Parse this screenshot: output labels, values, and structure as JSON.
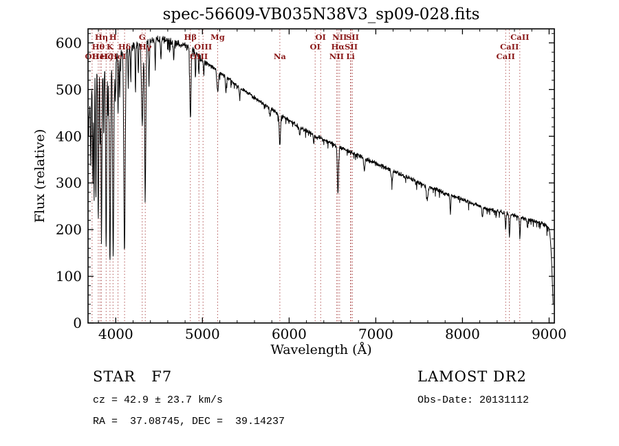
{
  "title": "spec-56609-VB035N38V3_sp09-028.fits",
  "chart_data": {
    "type": "line",
    "title": "spec-56609-VB035N38V3_sp09-028.fits",
    "xlabel": "Wavelength (Å)",
    "ylabel": "Flux (relative)",
    "xlim": [
      3680,
      9060
    ],
    "ylim": [
      0,
      630
    ],
    "x_ticks": [
      4000,
      5000,
      6000,
      7000,
      8000,
      9000
    ],
    "y_ticks": [
      0,
      100,
      200,
      300,
      400,
      500,
      600
    ],
    "x_minor_step": 200,
    "y_minor_step": 20,
    "grid": false,
    "legend": false,
    "line_color": "#000000",
    "marker_color": "#aa4444",
    "label_color": "#8b1a1a",
    "continuum": [
      [
        3688,
        420
      ],
      [
        3700,
        465
      ],
      [
        3715,
        500
      ],
      [
        3730,
        515
      ],
      [
        3750,
        527
      ],
      [
        3775,
        536
      ],
      [
        3800,
        542
      ],
      [
        3830,
        549
      ],
      [
        3860,
        554
      ],
      [
        3900,
        559
      ],
      [
        3950,
        564
      ],
      [
        4000,
        569
      ],
      [
        4060,
        578
      ],
      [
        4120,
        586
      ],
      [
        4180,
        592
      ],
      [
        4240,
        597
      ],
      [
        4300,
        600
      ],
      [
        4360,
        603
      ],
      [
        4420,
        606
      ],
      [
        4480,
        608
      ],
      [
        4540,
        607
      ],
      [
        4600,
        605
      ],
      [
        4660,
        602
      ],
      [
        4720,
        599
      ],
      [
        4780,
        596
      ],
      [
        4840,
        592
      ],
      [
        4900,
        585
      ],
      [
        4960,
        570
      ],
      [
        5020,
        560
      ],
      [
        5080,
        552
      ],
      [
        5140,
        545
      ],
      [
        5200,
        537
      ],
      [
        5260,
        528
      ],
      [
        5320,
        520
      ],
      [
        5380,
        512
      ],
      [
        5440,
        504
      ],
      [
        5500,
        496
      ],
      [
        5560,
        488
      ],
      [
        5620,
        480
      ],
      [
        5680,
        472
      ],
      [
        5740,
        465
      ],
      [
        5800,
        458
      ],
      [
        5860,
        450
      ],
      [
        5920,
        443
      ],
      [
        5980,
        436
      ],
      [
        6040,
        429
      ],
      [
        6100,
        422
      ],
      [
        6160,
        416
      ],
      [
        6220,
        410
      ],
      [
        6280,
        404
      ],
      [
        6340,
        398
      ],
      [
        6400,
        392
      ],
      [
        6460,
        387
      ],
      [
        6520,
        382
      ],
      [
        6580,
        377
      ],
      [
        6640,
        372
      ],
      [
        6700,
        367
      ],
      [
        6760,
        362
      ],
      [
        6820,
        357
      ],
      [
        6880,
        352
      ],
      [
        6940,
        347
      ],
      [
        7000,
        342
      ],
      [
        7060,
        337
      ],
      [
        7120,
        332
      ],
      [
        7180,
        327
      ],
      [
        7240,
        322
      ],
      [
        7300,
        317
      ],
      [
        7360,
        312
      ],
      [
        7420,
        307
      ],
      [
        7480,
        302
      ],
      [
        7540,
        297
      ],
      [
        7600,
        293
      ],
      [
        7660,
        288
      ],
      [
        7720,
        284
      ],
      [
        7780,
        279
      ],
      [
        7840,
        275
      ],
      [
        7900,
        271
      ],
      [
        7960,
        267
      ],
      [
        8020,
        263
      ],
      [
        8080,
        258
      ],
      [
        8140,
        254
      ],
      [
        8200,
        250
      ],
      [
        8260,
        246
      ],
      [
        8320,
        243
      ],
      [
        8380,
        240
      ],
      [
        8440,
        238
      ],
      [
        8500,
        236
      ],
      [
        8560,
        232
      ],
      [
        8620,
        229
      ],
      [
        8680,
        226
      ],
      [
        8740,
        223
      ],
      [
        8800,
        220
      ],
      [
        8860,
        217
      ],
      [
        8920,
        213
      ],
      [
        8960,
        210
      ],
      [
        9000,
        203
      ],
      [
        9012,
        185
      ],
      [
        9024,
        150
      ],
      [
        9034,
        105
      ],
      [
        9042,
        60
      ],
      [
        9048,
        28
      ]
    ],
    "absorption_lines": [
      [
        3712,
        150,
        4
      ],
      [
        3735,
        230,
        4
      ],
      [
        3750,
        270,
        4
      ],
      [
        3771,
        285,
        4
      ],
      [
        3798,
        330,
        5
      ],
      [
        3820,
        165,
        4
      ],
      [
        3835,
        380,
        5
      ],
      [
        3860,
        150,
        4
      ],
      [
        3889,
        400,
        6
      ],
      [
        3910,
        120,
        4
      ],
      [
        3933,
        430,
        7
      ],
      [
        3970,
        420,
        7
      ],
      [
        3995,
        100,
        4
      ],
      [
        4026,
        130,
        4
      ],
      [
        4045,
        90,
        4
      ],
      [
        4101,
        430,
        8
      ],
      [
        4144,
        80,
        4
      ],
      [
        4173,
        70,
        4
      ],
      [
        4227,
        105,
        4
      ],
      [
        4260,
        60,
        4
      ],
      [
        4305,
        170,
        9
      ],
      [
        4340,
        335,
        7
      ],
      [
        4383,
        95,
        4
      ],
      [
        4455,
        55,
        4
      ],
      [
        4520,
        45,
        4
      ],
      [
        4668,
        40,
        4
      ],
      [
        4861,
        152,
        7
      ],
      [
        4920,
        55,
        4
      ],
      [
        4958,
        35,
        4
      ],
      [
        5015,
        30,
        4
      ],
      [
        5175,
        45,
        9
      ],
      [
        5270,
        35,
        5
      ],
      [
        5430,
        25,
        5
      ],
      [
        5780,
        20,
        5
      ],
      [
        5893,
        68,
        7
      ],
      [
        6122,
        18,
        5
      ],
      [
        6283,
        18,
        5
      ],
      [
        6563,
        97,
        7
      ],
      [
        6867,
        26,
        7
      ],
      [
        7186,
        22,
        8
      ],
      [
        7594,
        28,
        10
      ],
      [
        7860,
        38,
        5
      ],
      [
        8230,
        20,
        6
      ],
      [
        8498,
        36,
        5
      ],
      [
        8542,
        46,
        5
      ],
      [
        8662,
        42,
        5
      ],
      [
        8750,
        20,
        5
      ]
    ],
    "noise": {
      "seed": 12345,
      "blue_amp": 20,
      "mid_amp": 8,
      "red_amp": 5.5
    },
    "spectral_markers": [
      {
        "wavelength": 3727,
        "label": "OII",
        "row": 3
      },
      {
        "wavelength": 3798,
        "label": "Hθ",
        "row": 2
      },
      {
        "wavelength": 3820,
        "label": "HeI",
        "row": 3
      },
      {
        "wavelength": 3835,
        "label": "Hη",
        "row": 1
      },
      {
        "wavelength": 3889,
        "label": "Hζ",
        "row": 3
      },
      {
        "wavelength": 3933,
        "label": "K",
        "row": 2
      },
      {
        "wavelength": 3968,
        "label": "H",
        "row": 1
      },
      {
        "wavelength": 4026,
        "label": "HeI",
        "row": 3
      },
      {
        "wavelength": 4101,
        "label": "Hδ",
        "row": 2
      },
      {
        "wavelength": 4305,
        "label": "G",
        "row": 1
      },
      {
        "wavelength": 4340,
        "label": "Hγ",
        "row": 2
      },
      {
        "wavelength": 4861,
        "label": "Hβ",
        "row": 1
      },
      {
        "wavelength": 4959,
        "label": "OIII",
        "row": 3
      },
      {
        "wavelength": 5007,
        "label": "OIII",
        "row": 2
      },
      {
        "wavelength": 5175,
        "label": "Mg",
        "row": 1
      },
      {
        "wavelength": 5893,
        "label": "Na",
        "row": 3
      },
      {
        "wavelength": 6300,
        "label": "OI",
        "row": 2
      },
      {
        "wavelength": 6364,
        "label": "OI",
        "row": 1
      },
      {
        "wavelength": 6548,
        "label": "NII",
        "row": 3
      },
      {
        "wavelength": 6563,
        "label": "Hα",
        "row": 2
      },
      {
        "wavelength": 6583,
        "label": "NII",
        "row": 1
      },
      {
        "wavelength": 6708,
        "label": "Li",
        "row": 3
      },
      {
        "wavelength": 6716,
        "label": "SII",
        "row": 2
      },
      {
        "wavelength": 6731,
        "label": "SII",
        "row": 1
      },
      {
        "wavelength": 8498,
        "label": "CaII",
        "row": 3
      },
      {
        "wavelength": 8542,
        "label": "CaII",
        "row": 2
      },
      {
        "wavelength": 8662,
        "label": "CaII",
        "row": 1
      }
    ]
  },
  "footer": {
    "object_type": "STAR   F7",
    "survey": "LAMOST DR2",
    "cz": "cz = 42.9 ± 23.7 km/s",
    "obs_date": "Obs-Date: 20131112",
    "ra_dec": "RA =  37.08745, DEC =  39.14237"
  }
}
